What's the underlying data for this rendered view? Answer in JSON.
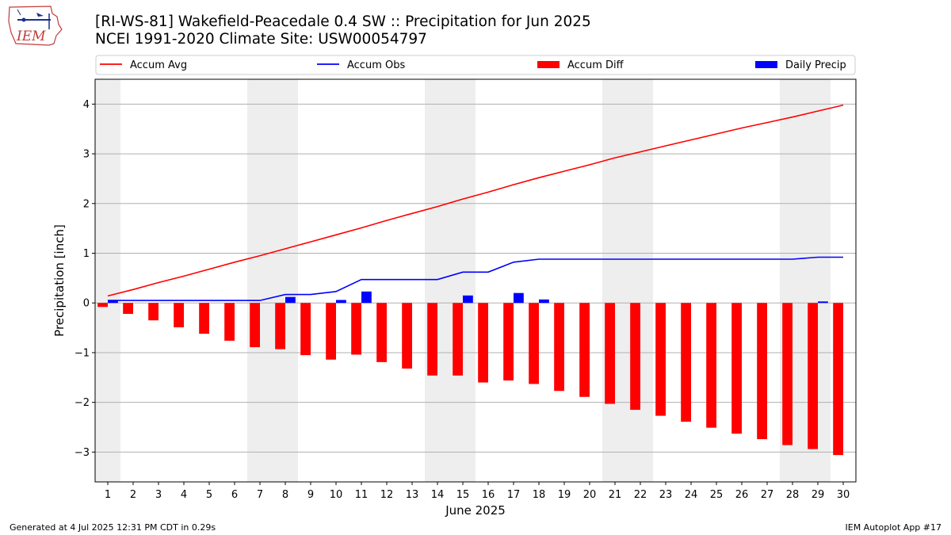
{
  "header": {
    "title_line1": "[RI-WS-81] Wakefield-Peacedale 0.4 SW :: Precipitation for Jun 2025",
    "title_line2": "NCEI 1991-2020 Climate Site: USW00054797",
    "logo_text": "IEM"
  },
  "footer": {
    "left": "Generated at 4 Jul 2025 12:31 PM CDT in 0.29s",
    "right": "IEM Autoplot App #17"
  },
  "colors": {
    "avg": "#ff0000",
    "obs": "#0000ff",
    "diff": "#ff0000",
    "daily": "#0000ff",
    "weekend": "#eeeeee",
    "grid": "#b0b0b0"
  },
  "chart_data": {
    "type": "bar",
    "xlabel": "June 2025",
    "ylabel": "Precipitation [inch]",
    "x": [
      1,
      2,
      3,
      4,
      5,
      6,
      7,
      8,
      9,
      10,
      11,
      12,
      13,
      14,
      15,
      16,
      17,
      18,
      19,
      20,
      21,
      22,
      23,
      24,
      25,
      26,
      27,
      28,
      29,
      30
    ],
    "ylim": [
      -3.6,
      4.5
    ],
    "yticks": [
      4,
      3,
      2,
      1,
      0,
      -1,
      -2,
      -3
    ],
    "ytick_labels": [
      "4",
      "3",
      "2",
      "1",
      "0",
      "−1",
      "−2",
      "−3"
    ],
    "weekends": [
      [
        1,
        1
      ],
      [
        7,
        8
      ],
      [
        14,
        15
      ],
      [
        21,
        22
      ],
      [
        28,
        29
      ]
    ],
    "grid": true,
    "legend": {
      "placement": "top",
      "entries": [
        "Accum Avg",
        "Accum Obs",
        "Accum Diff",
        "Daily Precip"
      ]
    },
    "series": [
      {
        "name": "Accum Avg",
        "kind": "line",
        "values": [
          0.14,
          0.27,
          0.41,
          0.54,
          0.68,
          0.82,
          0.95,
          1.09,
          1.23,
          1.37,
          1.51,
          1.66,
          1.8,
          1.94,
          2.09,
          2.23,
          2.38,
          2.52,
          2.65,
          2.78,
          2.92,
          3.04,
          3.16,
          3.28,
          3.4,
          3.52,
          3.63,
          3.74,
          3.86,
          3.98
        ]
      },
      {
        "name": "Accum Obs",
        "kind": "line",
        "values": [
          0.05,
          0.05,
          0.05,
          0.05,
          0.05,
          0.05,
          0.05,
          0.17,
          0.17,
          0.23,
          0.47,
          0.47,
          0.47,
          0.47,
          0.62,
          0.62,
          0.82,
          0.88,
          0.88,
          0.88,
          0.88,
          0.88,
          0.88,
          0.88,
          0.88,
          0.88,
          0.88,
          0.88,
          0.92,
          0.92
        ]
      },
      {
        "name": "Accum Diff",
        "kind": "bar",
        "values": [
          -0.08,
          -0.22,
          -0.35,
          -0.49,
          -0.62,
          -0.76,
          -0.89,
          -0.93,
          -1.05,
          -1.14,
          -1.04,
          -1.19,
          -1.32,
          -1.46,
          -1.46,
          -1.6,
          -1.56,
          -1.63,
          -1.77,
          -1.89,
          -2.03,
          -2.15,
          -2.27,
          -2.39,
          -2.51,
          -2.63,
          -2.74,
          -2.86,
          -2.94,
          -3.06
        ]
      },
      {
        "name": "Daily Precip",
        "kind": "bar",
        "values": [
          0.05,
          0,
          0,
          0,
          0,
          0,
          0,
          0.12,
          0,
          0.06,
          0.23,
          0,
          0,
          0,
          0.15,
          0,
          0.2,
          0.07,
          0,
          0,
          0,
          0,
          0,
          0,
          0,
          0,
          0,
          0,
          0.03,
          0
        ]
      }
    ]
  }
}
